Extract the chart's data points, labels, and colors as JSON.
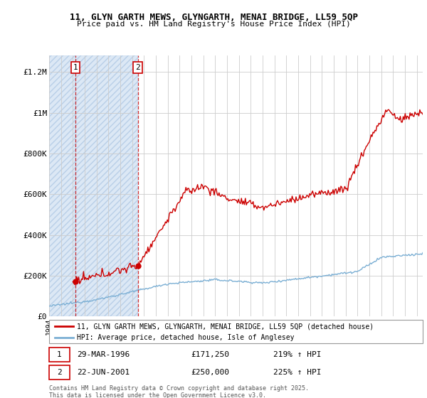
{
  "title_line1": "11, GLYN GARTH MEWS, GLYNGARTH, MENAI BRIDGE, LL59 5QP",
  "title_line2": "Price paid vs. HM Land Registry's House Price Index (HPI)",
  "ylabel_ticks": [
    "£0",
    "£200K",
    "£400K",
    "£600K",
    "£800K",
    "£1M",
    "£1.2M"
  ],
  "ytick_values": [
    0,
    200000,
    400000,
    600000,
    800000,
    1000000,
    1200000
  ],
  "ylim": [
    0,
    1280000
  ],
  "xlim_start": 1994.0,
  "xlim_end": 2025.5,
  "transaction1": {
    "date_num": 1996.24,
    "price": 171250,
    "label": "1"
  },
  "transaction2": {
    "date_num": 2001.47,
    "price": 250000,
    "label": "2"
  },
  "property_color": "#cc0000",
  "hpi_color": "#7bafd4",
  "shade_color": "#dce8f5",
  "grid_color": "#cccccc",
  "legend_property": "11, GLYN GARTH MEWS, GLYNGARTH, MENAI BRIDGE, LL59 5QP (detached house)",
  "legend_hpi": "HPI: Average price, detached house, Isle of Anglesey",
  "footer": "Contains HM Land Registry data © Crown copyright and database right 2025.\nThis data is licensed under the Open Government Licence v3.0."
}
